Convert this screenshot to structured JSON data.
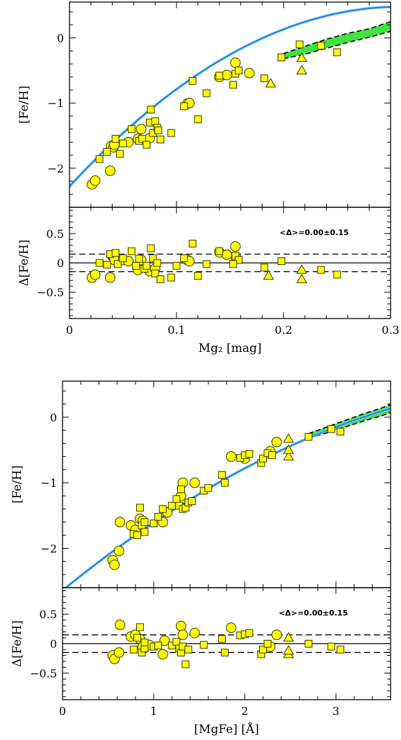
{
  "colors": {
    "marker_fill": "#ffff00",
    "marker_edge": "#333300",
    "fit_line": "#1a7fe0",
    "fit_line_edge": "#8fd0ff",
    "model_band": "#22dd22",
    "frame": "#000000"
  },
  "chart_data": [
    {
      "type": "scatter",
      "panel": "top-main",
      "xlabel": "",
      "ylabel": "[Fe/H]",
      "xlim": [
        0,
        0.3
      ],
      "ylim": [
        -2.6,
        0.55
      ],
      "xticks": [
        0,
        0.1,
        0.2,
        0.3
      ],
      "yticks": [
        0,
        -1,
        -2
      ],
      "ytick_labels": [
        "0",
        "−1",
        "−2"
      ],
      "series": [
        {
          "marker": "circle",
          "points": [
            [
              0.021,
              -2.25
            ],
            [
              0.024,
              -2.19
            ],
            [
              0.038,
              -2.04
            ],
            [
              0.039,
              -1.66
            ],
            [
              0.041,
              -1.68
            ],
            [
              0.042,
              -1.64
            ],
            [
              0.055,
              -1.6
            ],
            [
              0.064,
              -1.55
            ],
            [
              0.067,
              -1.4
            ],
            [
              0.075,
              -1.54
            ],
            [
              0.11,
              -1.01
            ],
            [
              0.112,
              -1.0
            ],
            [
              0.14,
              -0.6
            ],
            [
              0.147,
              -0.57
            ],
            [
              0.155,
              -0.38
            ],
            [
              0.168,
              -0.54
            ]
          ]
        },
        {
          "marker": "square",
          "points": [
            [
              0.028,
              -1.86
            ],
            [
              0.035,
              -1.75
            ],
            [
              0.043,
              -1.55
            ],
            [
              0.047,
              -1.78
            ],
            [
              0.05,
              -1.62
            ],
            [
              0.058,
              -1.4
            ],
            [
              0.065,
              -1.58
            ],
            [
              0.068,
              -1.55
            ],
            [
              0.072,
              -1.64
            ],
            [
              0.075,
              -1.3
            ],
            [
              0.076,
              -1.1
            ],
            [
              0.078,
              -1.46
            ],
            [
              0.08,
              -1.28
            ],
            [
              0.082,
              -1.38
            ],
            [
              0.083,
              -1.42
            ],
            [
              0.085,
              -1.56
            ],
            [
              0.095,
              -1.46
            ],
            [
              0.107,
              -1.05
            ],
            [
              0.115,
              -0.66
            ],
            [
              0.12,
              -1.25
            ],
            [
              0.128,
              -0.85
            ],
            [
              0.14,
              -0.58
            ],
            [
              0.155,
              -0.55
            ],
            [
              0.158,
              -0.5
            ],
            [
              0.182,
              -0.62
            ],
            [
              0.198,
              -0.3
            ],
            [
              0.215,
              -0.1
            ],
            [
              0.235,
              -0.12
            ],
            [
              0.25,
              -0.22
            ],
            [
              0.153,
              -0.72
            ]
          ]
        },
        {
          "marker": "triangle",
          "points": [
            [
              0.188,
              -0.7
            ],
            [
              0.217,
              -0.5
            ],
            [
              0.217,
              -0.31
            ]
          ]
        }
      ],
      "fit": {
        "name": "",
        "x_range": [
          0,
          0.3
        ],
        "coeffs": [
          -2.28,
          17.8,
          -28.7
        ]
      },
      "model_band": {
        "x": [
          0.2,
          0.22,
          0.24,
          0.26,
          0.28,
          0.3
        ],
        "y_low": [
          -0.32,
          -0.25,
          -0.16,
          -0.07,
          0.01,
          0.1
        ],
        "y_high": [
          -0.24,
          -0.13,
          -0.02,
          0.07,
          0.14,
          0.25
        ]
      }
    },
    {
      "type": "scatter",
      "panel": "top-residual",
      "xlabel": "Mg₂ [mag]",
      "ylabel": "Δ[Fe/H]",
      "xlim": [
        0,
        0.3
      ],
      "ylim": [
        -0.95,
        0.95
      ],
      "xticks": [
        0,
        0.1,
        0.2,
        0.3
      ],
      "yticks": [
        0.5,
        0,
        -0.5
      ],
      "ytick_labels": [
        "0.5",
        "0",
        "−0.5"
      ],
      "annotation": "<Δ>=0.00±0.15",
      "reference_lines": [
        0,
        0.15,
        -0.15
      ],
      "series": [
        {
          "marker": "circle",
          "points": [
            [
              0.021,
              -0.25
            ],
            [
              0.024,
              -0.2
            ],
            [
              0.038,
              -0.25
            ],
            [
              0.04,
              0.12
            ],
            [
              0.041,
              0.1
            ],
            [
              0.042,
              0.05
            ],
            [
              0.05,
              0.05
            ],
            [
              0.055,
              0.03
            ],
            [
              0.064,
              -0.12
            ],
            [
              0.067,
              0.05
            ],
            [
              0.075,
              -0.14
            ],
            [
              0.08,
              -0.1
            ],
            [
              0.11,
              0.05
            ],
            [
              0.112,
              0.03
            ],
            [
              0.14,
              0.18
            ],
            [
              0.147,
              0.14
            ],
            [
              0.155,
              0.28
            ],
            [
              0.156,
              0.08
            ]
          ]
        },
        {
          "marker": "square",
          "points": [
            [
              0.028,
              0.0
            ],
            [
              0.035,
              -0.03
            ],
            [
              0.038,
              0.15
            ],
            [
              0.043,
              0.17
            ],
            [
              0.045,
              -0.02
            ],
            [
              0.05,
              0.08
            ],
            [
              0.058,
              0.2
            ],
            [
              0.062,
              -0.05
            ],
            [
              0.065,
              0.07
            ],
            [
              0.07,
              -0.1
            ],
            [
              0.072,
              -0.05
            ],
            [
              0.076,
              0.25
            ],
            [
              0.078,
              0.08
            ],
            [
              0.08,
              -0.18
            ],
            [
              0.082,
              0.0
            ],
            [
              0.085,
              -0.28
            ],
            [
              0.095,
              -0.25
            ],
            [
              0.1,
              -0.05
            ],
            [
              0.107,
              0.08
            ],
            [
              0.115,
              0.33
            ],
            [
              0.12,
              -0.22
            ],
            [
              0.128,
              -0.02
            ],
            [
              0.14,
              0.2
            ],
            [
              0.155,
              0.12
            ],
            [
              0.158,
              0.05
            ],
            [
              0.182,
              -0.08
            ],
            [
              0.198,
              0.03
            ],
            [
              0.235,
              -0.12
            ],
            [
              0.25,
              -0.2
            ],
            [
              0.153,
              -0.02
            ]
          ]
        },
        {
          "marker": "triangle",
          "points": [
            [
              0.186,
              -0.22
            ],
            [
              0.217,
              -0.28
            ],
            [
              0.217,
              -0.12
            ]
          ]
        }
      ]
    },
    {
      "type": "scatter",
      "panel": "bottom-main",
      "xlabel": "",
      "ylabel": "[Fe/H]",
      "xlim": [
        0,
        3.6
      ],
      "ylim": [
        -2.6,
        0.55
      ],
      "xticks": [
        0,
        1,
        2,
        3
      ],
      "yticks": [
        0,
        -1,
        -2
      ],
      "ytick_labels": [
        "0",
        "−1",
        "−2"
      ],
      "series": [
        {
          "marker": "circle",
          "points": [
            [
              0.55,
              -2.18
            ],
            [
              0.57,
              -2.25
            ],
            [
              0.62,
              -2.04
            ],
            [
              0.63,
              -1.6
            ],
            [
              0.75,
              -1.65
            ],
            [
              0.8,
              -1.72
            ],
            [
              0.85,
              -1.55
            ],
            [
              0.88,
              -1.58
            ],
            [
              1.1,
              -1.6
            ],
            [
              1.15,
              -1.45
            ],
            [
              1.3,
              -1.2
            ],
            [
              1.32,
              -1.0
            ],
            [
              1.45,
              -1.0
            ],
            [
              1.85,
              -0.6
            ],
            [
              2.0,
              -0.63
            ],
            [
              2.28,
              -0.52
            ],
            [
              2.35,
              -0.38
            ]
          ]
        },
        {
          "marker": "square",
          "points": [
            [
              0.78,
              -1.78
            ],
            [
              0.82,
              -1.8
            ],
            [
              0.85,
              -1.38
            ],
            [
              0.87,
              -1.65
            ],
            [
              0.9,
              -1.75
            ],
            [
              0.9,
              -1.6
            ],
            [
              1.0,
              -1.62
            ],
            [
              1.05,
              -1.52
            ],
            [
              1.1,
              -1.4
            ],
            [
              1.2,
              -1.35
            ],
            [
              1.25,
              -1.25
            ],
            [
              1.28,
              -1.35
            ],
            [
              1.3,
              -1.1
            ],
            [
              1.32,
              -1.4
            ],
            [
              1.35,
              -1.38
            ],
            [
              1.38,
              -1.3
            ],
            [
              1.42,
              -1.28
            ],
            [
              1.55,
              -1.12
            ],
            [
              1.6,
              -1.08
            ],
            [
              1.75,
              -0.88
            ],
            [
              1.78,
              -1.0
            ],
            [
              1.95,
              -0.62
            ],
            [
              2.0,
              -0.58
            ],
            [
              2.05,
              -0.56
            ],
            [
              2.18,
              -0.7
            ],
            [
              2.2,
              -0.63
            ],
            [
              2.25,
              -0.55
            ],
            [
              2.3,
              -0.58
            ],
            [
              2.7,
              -0.3
            ],
            [
              2.95,
              -0.18
            ],
            [
              3.05,
              -0.22
            ]
          ]
        },
        {
          "marker": "triangle",
          "points": [
            [
              2.48,
              -0.6
            ],
            [
              2.48,
              -0.33
            ],
            [
              2.48,
              -0.5
            ]
          ]
        }
      ],
      "fit": {
        "name": "",
        "x_range": [
          0,
          3.6
        ],
        "coeffs": [
          -2.64,
          1.13,
          -0.1
        ]
      },
      "model_band": {
        "x": [
          2.7,
          2.9,
          3.1,
          3.3,
          3.5,
          3.6
        ],
        "y_low": [
          -0.32,
          -0.24,
          -0.15,
          -0.06,
          0.02,
          0.07
        ],
        "y_high": [
          -0.25,
          -0.15,
          -0.05,
          0.05,
          0.14,
          0.19
        ]
      }
    },
    {
      "type": "scatter",
      "panel": "bottom-residual",
      "xlabel": "[MgFe] [Å]",
      "ylabel": "Δ[Fe/H]",
      "xlim": [
        0,
        3.6
      ],
      "ylim": [
        -0.95,
        0.95
      ],
      "xticks": [
        0,
        1,
        2,
        3
      ],
      "yticks": [
        0.5,
        0,
        -0.5
      ],
      "ytick_labels": [
        "0.5",
        "0",
        "−0.5"
      ],
      "annotation": "<Δ>=0.00±0.15",
      "reference_lines": [
        0,
        0.15,
        -0.15
      ],
      "series": [
        {
          "marker": "circle",
          "points": [
            [
              0.55,
              -0.2
            ],
            [
              0.57,
              -0.26
            ],
            [
              0.62,
              -0.15
            ],
            [
              0.63,
              0.32
            ],
            [
              0.75,
              0.12
            ],
            [
              0.8,
              0.15
            ],
            [
              0.85,
              0.08
            ],
            [
              0.88,
              -0.05
            ],
            [
              0.95,
              -0.02
            ],
            [
              1.1,
              -0.18
            ],
            [
              1.12,
              0.05
            ],
            [
              1.3,
              0.3
            ],
            [
              1.32,
              0.15
            ],
            [
              1.45,
              0.18
            ],
            [
              1.85,
              0.27
            ],
            [
              2.28,
              -0.05
            ],
            [
              2.35,
              0.15
            ]
          ]
        },
        {
          "marker": "square",
          "points": [
            [
              0.78,
              -0.1
            ],
            [
              0.82,
              0.1
            ],
            [
              0.85,
              0.28
            ],
            [
              0.87,
              -0.15
            ],
            [
              0.9,
              -0.08
            ],
            [
              0.9,
              0.02
            ],
            [
              1.0,
              -0.05
            ],
            [
              1.05,
              -0.03
            ],
            [
              1.2,
              -0.03
            ],
            [
              1.25,
              0.03
            ],
            [
              1.28,
              -0.08
            ],
            [
              1.3,
              -0.15
            ],
            [
              1.32,
              -0.05
            ],
            [
              1.35,
              -0.35
            ],
            [
              1.38,
              -0.1
            ],
            [
              1.55,
              -0.02
            ],
            [
              1.75,
              0.08
            ],
            [
              1.78,
              -0.15
            ],
            [
              1.95,
              0.14
            ],
            [
              2.0,
              0.16
            ],
            [
              2.05,
              0.18
            ],
            [
              2.18,
              -0.18
            ],
            [
              2.2,
              -0.1
            ],
            [
              2.25,
              0.0
            ],
            [
              2.7,
              0.0
            ],
            [
              2.95,
              -0.05
            ],
            [
              3.05,
              -0.1
            ]
          ]
        },
        {
          "marker": "triangle",
          "points": [
            [
              2.48,
              -0.18
            ],
            [
              2.48,
              0.1
            ],
            [
              2.48,
              -0.12
            ]
          ]
        }
      ]
    }
  ]
}
